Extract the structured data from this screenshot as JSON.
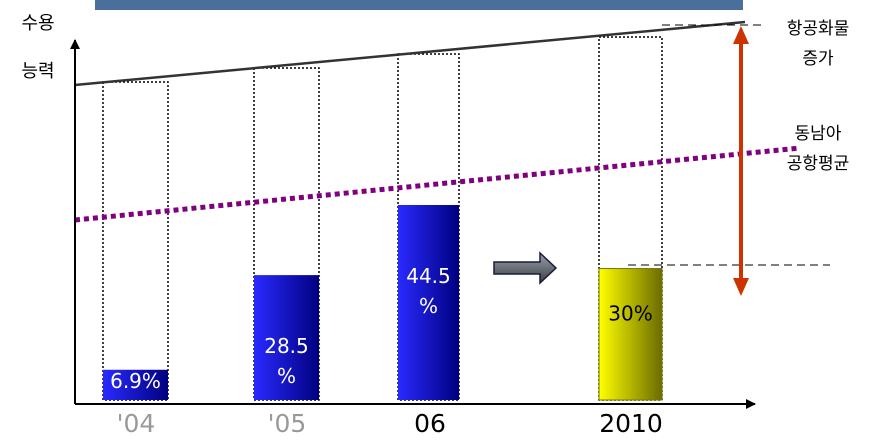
{
  "chart_data": {
    "type": "bar",
    "categories": [
      "'04",
      "'05",
      "06",
      "2010"
    ],
    "values": [
      6.9,
      28.5,
      44.5,
      30
    ],
    "value_labels": [
      "6.9%",
      "28.5\n%",
      "44.5\n%",
      "30%"
    ],
    "value_unit": "%",
    "ylabel_lines": [
      "수용",
      "능력"
    ],
    "annotations": {
      "cargo_growth": [
        "항공화물",
        "증가"
      ],
      "sea_airport_avg": [
        "동남아",
        "공항평균"
      ]
    },
    "colors": {
      "bar_blue_light": "#2a2aff",
      "bar_blue_dark": "#000080",
      "bar_yellow_light": "#ffff00",
      "bar_yellow_dark": "#6b6b00",
      "header": "#4a6f9a",
      "trend_solid": "#333333",
      "trend_dotted": "#800080",
      "range_arrow": "#cc3300",
      "axis_gray_label": "#999999"
    }
  }
}
